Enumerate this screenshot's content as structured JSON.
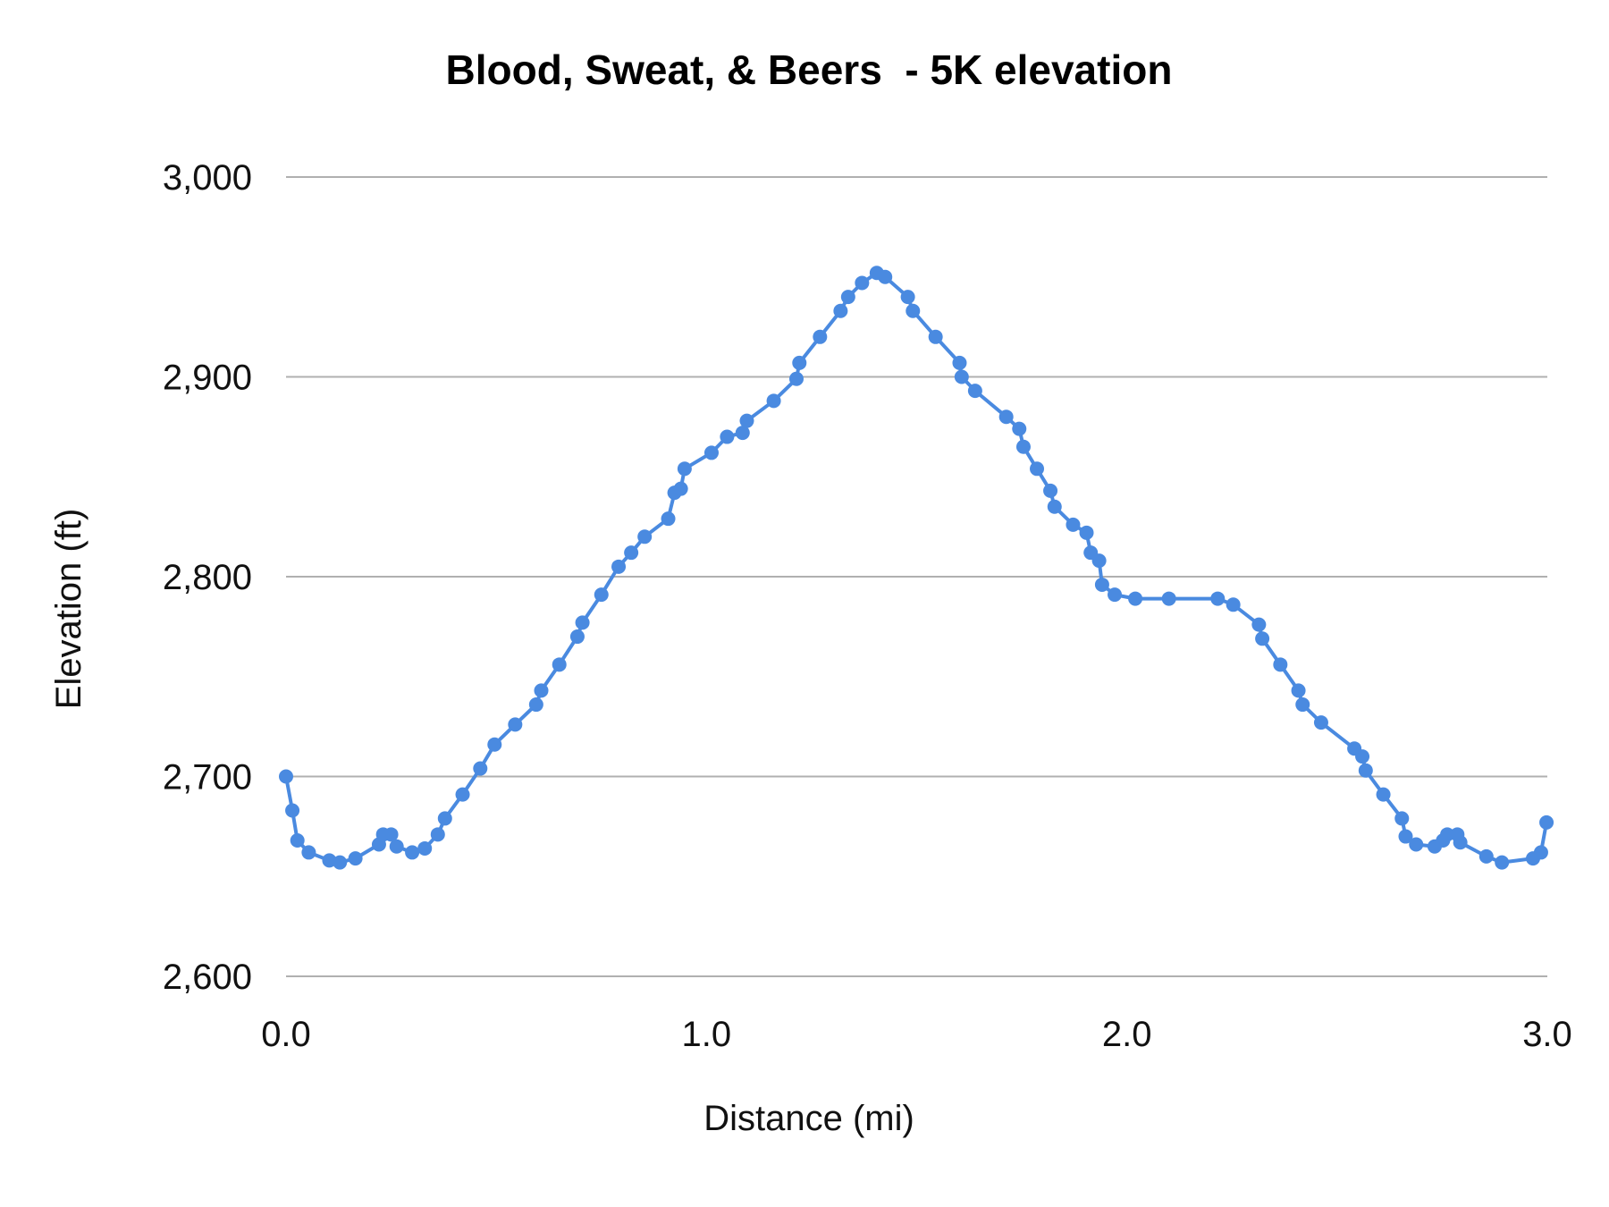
{
  "chart_data": {
    "type": "line",
    "title": "Blood, Sweat, & Beers  - 5K elevation",
    "xlabel": "Distance (mi)",
    "ylabel": "Elevation (ft)",
    "xlim": [
      0,
      3
    ],
    "ylim": [
      2600,
      3000
    ],
    "xticks": [
      "0.0",
      "1.0",
      "2.0",
      "3.0"
    ],
    "yticks": [
      "2,600",
      "2,700",
      "2,800",
      "2,900",
      "3,000"
    ],
    "grid": "horizontal",
    "color": "#4a8ae0",
    "markers": true,
    "series": [
      {
        "x": [
          0,
          0.015,
          0.027,
          0.054,
          0.103,
          0.128,
          0.165,
          0.221,
          0.231,
          0.25,
          0.263,
          0.3,
          0.33,
          0.361,
          0.378,
          0.42,
          0.462,
          0.496,
          0.545,
          0.595,
          0.607,
          0.65,
          0.693,
          0.705,
          0.75,
          0.791,
          0.821,
          0.853,
          0.909,
          0.924,
          0.939,
          0.948,
          1.012,
          1.049,
          1.086,
          1.096,
          1.16,
          1.214,
          1.221,
          1.27,
          1.319,
          1.337,
          1.37,
          1.405,
          1.425,
          1.479,
          1.491,
          1.545,
          1.602,
          1.607,
          1.639,
          1.713,
          1.744,
          1.754,
          1.786,
          1.818,
          1.828,
          1.872,
          1.904,
          1.914,
          1.934,
          1.941,
          1.971,
          2.02,
          2.1,
          2.216,
          2.253,
          2.314,
          2.322,
          2.365,
          2.408,
          2.418,
          2.462,
          2.541,
          2.56,
          2.568,
          2.61,
          2.654,
          2.663,
          2.688,
          2.732,
          2.752,
          2.762,
          2.786,
          2.793,
          2.855,
          2.892,
          2.966,
          2.985,
          2.998
        ],
        "y": [
          2700,
          2683,
          2668,
          2662,
          2658,
          2657,
          2659,
          2666,
          2671,
          2671,
          2665,
          2662,
          2664,
          2671,
          2679,
          2691,
          2704,
          2716,
          2726,
          2736,
          2743,
          2756,
          2770,
          2777,
          2791,
          2805,
          2812,
          2820,
          2829,
          2842,
          2844,
          2854,
          2862,
          2870,
          2872,
          2878,
          2888,
          2899,
          2907,
          2920,
          2933,
          2940,
          2947,
          2952,
          2950,
          2940,
          2933,
          2920,
          2907,
          2900,
          2893,
          2880,
          2874,
          2865,
          2854,
          2843,
          2835,
          2826,
          2822,
          2812,
          2808,
          2796,
          2791,
          2789,
          2789,
          2789,
          2786,
          2776,
          2769,
          2756,
          2743,
          2736,
          2727,
          2714,
          2710,
          2703,
          2691,
          2679,
          2670,
          2666,
          2665,
          2668,
          2671,
          2671,
          2667,
          2660,
          2657,
          2659,
          2662,
          2677
        ]
      }
    ]
  }
}
